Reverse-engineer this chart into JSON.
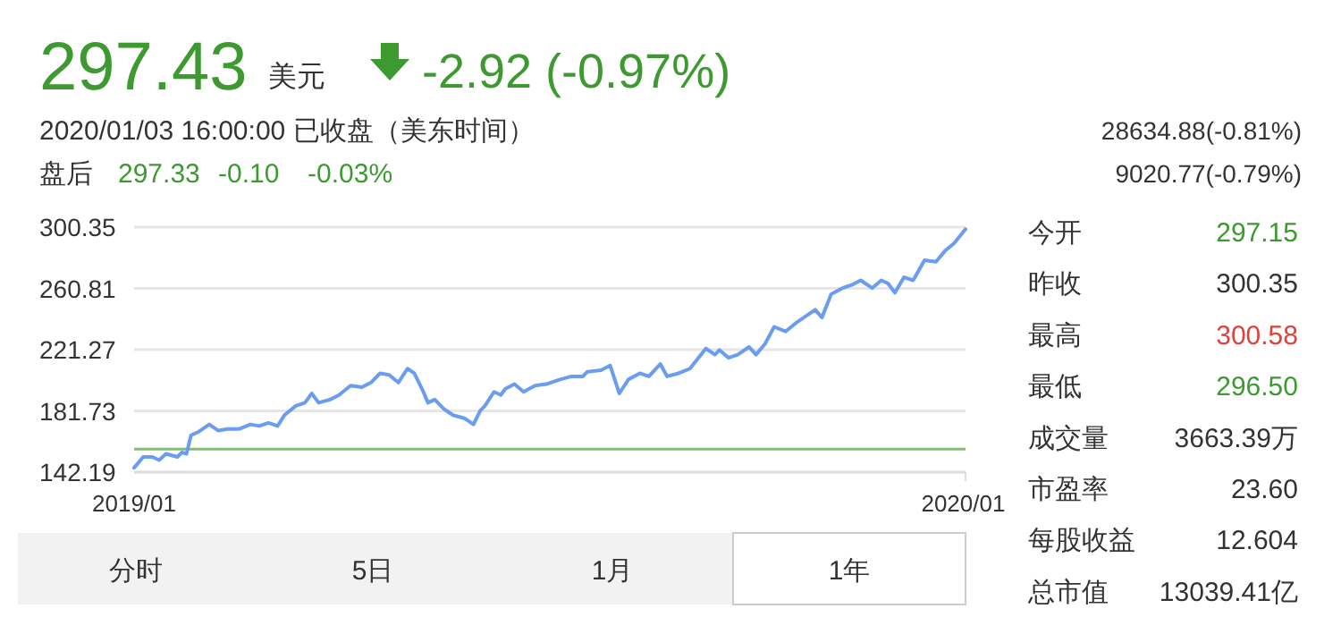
{
  "chart_data": [
    {
      "type": "other",
      "annotations": [
        "297.43",
        "美元",
        "-2.92 (-0.97%)",
        "2020/01/03 16:00:00 已收盘（美东时间）",
        "盘后",
        "297.33",
        "-0.10",
        "-0.03%",
        "28634.88(-0.81%)",
        "9020.77(-0.79%)"
      ]
    },
    {
      "type": "line",
      "xlim": [
        "2019-01-03",
        "2020-01-03"
      ],
      "xticks": [
        {
          "value": "2019-01-03",
          "label": "2019/01"
        },
        {
          "value": "2020-01-02",
          "label": "2020/01"
        }
      ],
      "ylim": [
        142.19,
        300.35
      ],
      "yticks": [
        142.19,
        181.73,
        221.27,
        260.81,
        300.35
      ],
      "grid": "y",
      "ref_lines": [
        {
          "axis": "y",
          "value": 157,
          "color": "#7dc36b"
        }
      ],
      "x": [
        "2019-01-03",
        "2019-01-07",
        "2019-01-11",
        "2019-01-14",
        "2019-01-17",
        "2019-01-22",
        "2019-01-24",
        "2019-01-26",
        "2019-01-28",
        "2019-01-31",
        "2019-02-05",
        "2019-02-09",
        "2019-02-13",
        "2019-02-18",
        "2019-02-23",
        "2019-02-27",
        "2019-03-03",
        "2019-03-07",
        "2019-03-10",
        "2019-03-15",
        "2019-03-19",
        "2019-03-22",
        "2019-03-25",
        "2019-03-30",
        "2019-04-03",
        "2019-04-08",
        "2019-04-13",
        "2019-04-17",
        "2019-04-21",
        "2019-04-25",
        "2019-04-29",
        "2019-05-03",
        "2019-05-06",
        "2019-05-10",
        "2019-05-12",
        "2019-05-15",
        "2019-05-19",
        "2019-05-23",
        "2019-05-28",
        "2019-06-01",
        "2019-06-04",
        "2019-06-06",
        "2019-06-10",
        "2019-06-13",
        "2019-06-15",
        "2019-06-19",
        "2019-06-23",
        "2019-06-28",
        "2019-07-03",
        "2019-07-09",
        "2019-07-14",
        "2019-07-19",
        "2019-07-21",
        "2019-07-27",
        "2019-07-31",
        "2019-08-04",
        "2019-08-08",
        "2019-08-13",
        "2019-08-17",
        "2019-08-22",
        "2019-08-25",
        "2019-08-30",
        "2019-09-04",
        "2019-09-11",
        "2019-09-15",
        "2019-09-17",
        "2019-09-21",
        "2019-09-25",
        "2019-09-30",
        "2019-10-03",
        "2019-10-07",
        "2019-10-11",
        "2019-10-16",
        "2019-10-21",
        "2019-10-26",
        "2019-10-29",
        "2019-11-01",
        "2019-11-05",
        "2019-11-10",
        "2019-11-14",
        "2019-11-18",
        "2019-11-23",
        "2019-11-27",
        "2019-11-30",
        "2019-12-03",
        "2019-12-07",
        "2019-12-11",
        "2019-12-16",
        "2019-12-21",
        "2019-12-25",
        "2019-12-29",
        "2020-01-03"
      ],
      "series": [
        {
          "color": "#6a9cf0",
          "values": [
            145,
            152,
            152,
            150,
            154,
            152,
            155,
            154,
            166,
            168,
            173,
            169,
            170,
            170,
            173,
            172,
            174,
            172,
            179,
            185,
            187,
            193,
            187,
            189,
            192,
            198,
            197,
            200,
            206,
            205,
            200,
            209,
            206,
            194,
            187,
            189,
            183,
            179,
            177,
            173,
            182,
            185,
            194,
            192,
            196,
            199,
            194,
            198,
            199,
            202,
            204,
            204,
            207,
            208,
            211,
            193,
            202,
            206,
            204,
            212,
            204,
            206,
            209,
            222,
            218,
            221,
            216,
            218,
            223,
            218,
            225,
            236,
            233,
            239,
            244,
            247,
            242,
            257,
            261,
            263,
            266,
            261,
            266,
            264,
            258,
            268,
            266,
            279,
            278,
            285,
            290,
            299
          ]
        }
      ]
    },
    {
      "type": "other",
      "annotations": [
        "今开",
        "297.15",
        "昨收",
        "300.35",
        "最高",
        "300.58",
        "最低",
        "296.50",
        "成交量",
        "3663.39万",
        "市盈率",
        "23.60",
        "每股收益",
        "12.604",
        "总市值",
        "13039.41亿"
      ]
    },
    {
      "type": "other",
      "annotations": [
        "分时",
        "5日",
        "1月",
        "1年"
      ]
    }
  ]
}
